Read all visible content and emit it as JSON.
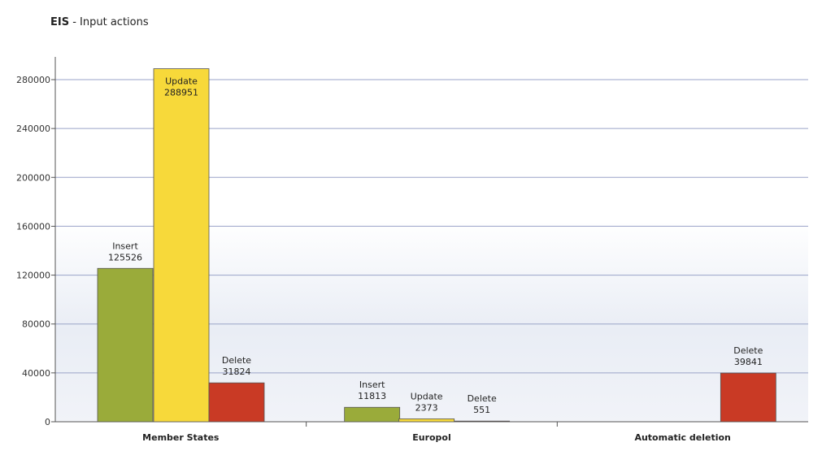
{
  "title_bold": "EIS",
  "title_rest": " - Input actions",
  "colors": {
    "insert": "#9aab3a",
    "update": "#f7d93a",
    "delete": "#c93a25",
    "grid": "#9aa3c8"
  },
  "chart_data": {
    "type": "bar",
    "title": "EIS - Input actions",
    "categories": [
      "Member States",
      "Europol",
      "Automatic deletion"
    ],
    "series": [
      {
        "name": "Insert",
        "values": [
          125526,
          11813,
          null
        ]
      },
      {
        "name": "Update",
        "values": [
          288951,
          2373,
          null
        ]
      },
      {
        "name": "Delete",
        "values": [
          31824,
          551,
          39841
        ]
      }
    ],
    "yticks": [
      "0",
      "40000",
      "80000",
      "120000",
      "160000",
      "200000",
      "240000",
      "280000"
    ],
    "ylim": [
      0,
      296000
    ],
    "grid": true,
    "legend": "none (labels on bars)"
  }
}
